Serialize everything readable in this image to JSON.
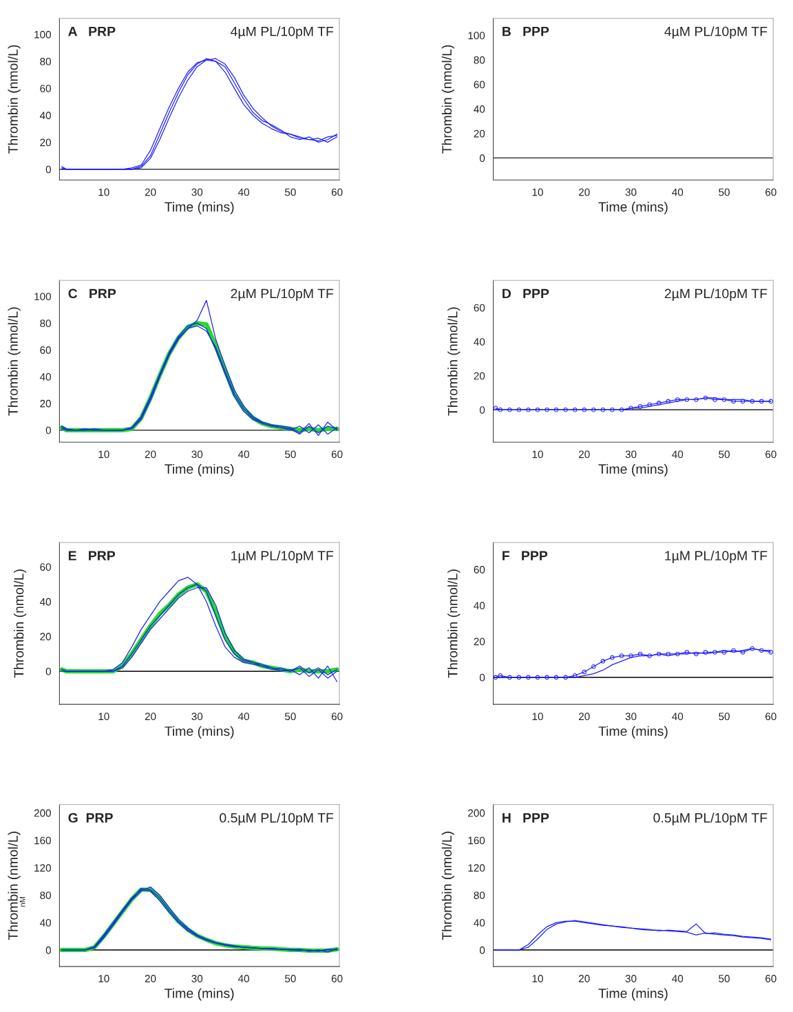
{
  "chart_data": [
    {
      "type": "line",
      "annotations": [
        "A   PRP",
        "4µM PL/10pM TF"
      ],
      "xlabel": "Time (mins)",
      "ylabel": "Thrombin (nmol/L)",
      "xlim": [
        0.5,
        60.5
      ],
      "xticks": [
        10,
        20,
        30,
        40,
        50,
        60
      ],
      "ylim": [
        -8,
        112
      ],
      "yticks": [
        0,
        20,
        40,
        60,
        80,
        100
      ],
      "ref_lines": [
        {
          "axis": "y",
          "value": 0,
          "color": "#555555"
        }
      ],
      "x": [
        1,
        2,
        4,
        6,
        8,
        10,
        12,
        14,
        16,
        18,
        20,
        22,
        24,
        26,
        28,
        30,
        32,
        34,
        36,
        38,
        40,
        42,
        44,
        46,
        48,
        50,
        52,
        54,
        56,
        58,
        60
      ],
      "series": [
        {
          "color": "#1f1fff",
          "values": [
            2,
            0,
            0,
            0,
            0,
            0,
            0,
            0,
            1,
            3,
            14,
            30,
            46,
            60,
            72,
            79,
            81,
            80,
            72,
            60,
            48,
            40,
            34,
            30,
            27,
            26,
            24,
            22,
            23,
            20,
            24
          ]
        },
        {
          "color": "#1f1fff",
          "values": [
            1,
            0,
            0,
            0,
            0,
            0,
            0,
            0,
            0,
            1,
            8,
            22,
            38,
            53,
            66,
            76,
            81,
            82,
            78,
            68,
            55,
            45,
            38,
            32,
            28,
            26,
            23,
            22,
            21,
            24,
            25
          ]
        },
        {
          "color": "#1f1fff",
          "values": [
            0,
            0,
            0,
            0,
            0,
            0,
            0,
            0,
            0,
            2,
            10,
            26,
            42,
            57,
            70,
            78,
            82,
            80,
            76,
            64,
            52,
            42,
            36,
            33,
            29,
            24,
            22,
            24,
            20,
            22,
            26
          ]
        }
      ]
    },
    {
      "type": "line",
      "annotations": [
        "B   PPP",
        "4µM PL/10pM TF"
      ],
      "xlabel": "Time (mins)",
      "ylabel": "Thrombin (nmol/L)",
      "xlim": [
        0.5,
        60.5
      ],
      "xticks": [
        10,
        20,
        30,
        40,
        50,
        60
      ],
      "ylim": [
        -18,
        114
      ],
      "yticks": [
        0,
        20,
        40,
        60,
        80,
        100
      ],
      "ref_lines": [
        {
          "axis": "y",
          "value": 0,
          "color": "#555555"
        }
      ]
    },
    {
      "type": "line",
      "annotations": [
        "C   PRP",
        "2µM PL/10pM TF"
      ],
      "xlabel": "Time (mins)",
      "ylabel": "Thrombin (nmol/L)",
      "xlim": [
        0.5,
        60.5
      ],
      "xticks": [
        10,
        20,
        30,
        40,
        50,
        60
      ],
      "ylim": [
        -9,
        112
      ],
      "yticks": [
        0,
        20,
        40,
        60,
        80,
        100
      ],
      "ref_lines": [
        {
          "axis": "y",
          "value": 0,
          "color": "#555555"
        }
      ],
      "x": [
        1,
        2,
        4,
        6,
        8,
        10,
        12,
        14,
        16,
        18,
        20,
        22,
        24,
        26,
        28,
        30,
        32,
        34,
        36,
        38,
        40,
        42,
        44,
        46,
        48,
        50,
        52,
        54,
        56,
        58,
        60
      ],
      "series": [
        {
          "color": "#1f1fff",
          "values": [
            3,
            1,
            0,
            0,
            1,
            0,
            0,
            0,
            2,
            10,
            25,
            42,
            58,
            70,
            78,
            80,
            76,
            60,
            42,
            25,
            14,
            8,
            5,
            3,
            2,
            0,
            3,
            -2,
            4,
            -3,
            2
          ]
        },
        {
          "color": "#1f1fff",
          "values": [
            2,
            0,
            0,
            1,
            0,
            0,
            0,
            0,
            1,
            8,
            22,
            40,
            56,
            68,
            76,
            82,
            97,
            68,
            48,
            30,
            18,
            10,
            6,
            4,
            3,
            2,
            -2,
            5,
            -4,
            6,
            0
          ]
        },
        {
          "color": "#1f1fff",
          "values": [
            1,
            0,
            0,
            0,
            0,
            0,
            0,
            0,
            1,
            9,
            24,
            41,
            57,
            69,
            76,
            78,
            74,
            62,
            44,
            27,
            16,
            9,
            5,
            3,
            2,
            1,
            -3,
            3,
            -2,
            3,
            1
          ]
        },
        {
          "color": "#22dd22",
          "values": [
            2,
            0,
            0,
            0,
            0,
            0,
            0,
            0,
            1,
            9,
            24,
            41,
            57,
            69,
            77,
            80,
            79,
            63,
            45,
            27,
            16,
            9,
            5,
            3,
            2,
            1,
            0,
            1,
            0,
            1,
            1
          ]
        }
      ]
    },
    {
      "type": "line",
      "annotations": [
        "D   PPP",
        "2µM PL/10pM TF"
      ],
      "xlabel": "Time (mins)",
      "ylabel": "Thrombin (nmol/L)",
      "xlim": [
        0.5,
        60.5
      ],
      "xticks": [
        10,
        20,
        30,
        40,
        50,
        60
      ],
      "ylim": [
        -19,
        76
      ],
      "yticks": [
        0,
        20,
        40,
        60
      ],
      "ref_lines": [
        {
          "axis": "y",
          "value": 0,
          "color": "#222222"
        }
      ],
      "x": [
        1,
        2,
        4,
        6,
        8,
        10,
        12,
        14,
        16,
        18,
        20,
        22,
        24,
        26,
        28,
        30,
        32,
        34,
        36,
        38,
        40,
        42,
        44,
        46,
        48,
        50,
        52,
        54,
        56,
        58,
        60
      ],
      "series": [
        {
          "color": "#1f1fff",
          "marker": "circle",
          "values": [
            1,
            0,
            0,
            0,
            0,
            0,
            0,
            0,
            0,
            0,
            0,
            0,
            0,
            0,
            0,
            1,
            2,
            3,
            4,
            5,
            6,
            6,
            6,
            7,
            6,
            6,
            5,
            5,
            5,
            5,
            5
          ]
        },
        {
          "color": "#1f1fff",
          "values": [
            0,
            0,
            0,
            0,
            0,
            0,
            0,
            0,
            0,
            0,
            0,
            0,
            0,
            0,
            0,
            1,
            1,
            2,
            3,
            4,
            5,
            6,
            6,
            7,
            7,
            6,
            6,
            6,
            5,
            5,
            5
          ]
        }
      ]
    },
    {
      "type": "line",
      "annotations": [
        "E   PRP",
        "1µM PL/10pM TF"
      ],
      "xlabel": "Time (mins)",
      "ylabel": "Thrombin (nmol/L)",
      "xlim": [
        0.5,
        60.5
      ],
      "xticks": [
        10,
        20,
        30,
        40,
        50,
        60
      ],
      "ylim": [
        -19,
        74
      ],
      "yticks": [
        0,
        20,
        40,
        60
      ],
      "ref_lines": [
        {
          "axis": "y",
          "value": 0,
          "color": "#222222"
        }
      ],
      "x": [
        1,
        2,
        4,
        6,
        8,
        10,
        12,
        14,
        16,
        18,
        20,
        22,
        24,
        26,
        28,
        30,
        32,
        34,
        36,
        38,
        40,
        42,
        44,
        46,
        48,
        50,
        52,
        54,
        56,
        58,
        60
      ],
      "series": [
        {
          "color": "#1f1fff",
          "values": [
            1,
            0,
            0,
            0,
            0,
            0,
            1,
            5,
            14,
            24,
            32,
            40,
            46,
            52,
            54,
            50,
            40,
            26,
            14,
            8,
            5,
            4,
            3,
            1,
            2,
            0,
            2,
            -3,
            1,
            -4,
            0
          ]
        },
        {
          "color": "#1f1fff",
          "values": [
            1,
            0,
            0,
            0,
            0,
            0,
            0,
            3,
            10,
            18,
            26,
            32,
            38,
            44,
            48,
            50,
            46,
            32,
            18,
            10,
            6,
            5,
            3,
            2,
            0,
            1,
            -2,
            2,
            -4,
            3,
            -6
          ]
        },
        {
          "color": "#1f1fff",
          "values": [
            0,
            0,
            0,
            0,
            0,
            0,
            0,
            2,
            8,
            16,
            24,
            30,
            36,
            42,
            46,
            48,
            48,
            38,
            22,
            12,
            7,
            5,
            4,
            2,
            1,
            0,
            3,
            -1,
            2,
            -2,
            1
          ]
        },
        {
          "color": "#22dd22",
          "values": [
            1,
            0,
            0,
            0,
            0,
            0,
            0,
            3,
            10,
            18,
            26,
            33,
            38,
            44,
            48,
            50,
            46,
            34,
            20,
            11,
            6,
            5,
            3,
            2,
            1,
            0,
            1,
            0,
            0,
            0,
            1
          ]
        }
      ]
    },
    {
      "type": "line",
      "annotations": [
        "F   PPP",
        "1µM PL/10pM TF"
      ],
      "xlabel": "Time (mins)",
      "ylabel": "Thrombin (nmol/L)",
      "xlim": [
        0.5,
        60.5
      ],
      "xticks": [
        10,
        20,
        30,
        40,
        50,
        60
      ],
      "ylim": [
        -15,
        75
      ],
      "yticks": [
        0,
        20,
        40,
        60
      ],
      "ref_lines": [
        {
          "axis": "y",
          "value": 0,
          "color": "#222222"
        }
      ],
      "x": [
        1,
        2,
        4,
        6,
        8,
        10,
        12,
        14,
        16,
        18,
        20,
        22,
        24,
        26,
        28,
        30,
        32,
        34,
        36,
        38,
        40,
        42,
        44,
        46,
        48,
        50,
        52,
        54,
        56,
        58,
        60
      ],
      "series": [
        {
          "color": "#1f1fff",
          "marker": "circle",
          "values": [
            0,
            1,
            0,
            0,
            0,
            0,
            0,
            0,
            0,
            1,
            3,
            6,
            9,
            11,
            12,
            12,
            13,
            12,
            13,
            13,
            13,
            14,
            13,
            14,
            14,
            14,
            15,
            14,
            16,
            15,
            14
          ]
        },
        {
          "color": "#1f1fff",
          "values": [
            0,
            0,
            0,
            0,
            0,
            0,
            0,
            0,
            0,
            0,
            1,
            2,
            4,
            7,
            9,
            11,
            12,
            12,
            13,
            12,
            13,
            13,
            14,
            13,
            14,
            15,
            14,
            15,
            16,
            15,
            15
          ]
        }
      ]
    },
    {
      "type": "line",
      "annotations": [
        "G  PRP",
        "0.5µM PL/10pM TF",
        "nM"
      ],
      "xlabel": "Time (mins)",
      "ylabel": "Thrombin (nmol/L)",
      "xlim": [
        0.5,
        60.5
      ],
      "xticks": [
        10,
        20,
        30,
        40,
        50,
        60
      ],
      "ylim": [
        -24,
        212
      ],
      "yticks": [
        0,
        40,
        80,
        120,
        160,
        200
      ],
      "ref_lines": [
        {
          "axis": "y",
          "value": 0,
          "color": "#222222"
        }
      ],
      "x": [
        1,
        2,
        4,
        6,
        8,
        10,
        12,
        14,
        16,
        18,
        20,
        22,
        24,
        26,
        28,
        30,
        32,
        34,
        36,
        38,
        40,
        42,
        44,
        46,
        48,
        50,
        52,
        54,
        56,
        58,
        60
      ],
      "series": [
        {
          "color": "#1f1fff",
          "values": [
            0,
            0,
            0,
            0,
            5,
            22,
            40,
            58,
            76,
            88,
            86,
            72,
            55,
            40,
            28,
            20,
            14,
            10,
            7,
            5,
            4,
            3,
            2,
            2,
            1,
            0,
            1,
            -2,
            0,
            -3,
            2
          ]
        },
        {
          "color": "#1f1fff",
          "values": [
            0,
            0,
            0,
            0,
            3,
            18,
            36,
            55,
            73,
            86,
            92,
            80,
            62,
            45,
            32,
            22,
            16,
            11,
            8,
            6,
            4,
            3,
            2,
            1,
            1,
            0,
            -1,
            0,
            -2,
            1,
            0
          ]
        },
        {
          "color": "#1f1fff",
          "values": [
            0,
            0,
            0,
            0,
            4,
            20,
            38,
            56,
            74,
            90,
            88,
            76,
            58,
            42,
            30,
            21,
            15,
            10,
            7,
            5,
            4,
            3,
            2,
            2,
            1,
            1,
            0,
            -1,
            -1,
            0,
            1
          ]
        },
        {
          "color": "#22dd22",
          "values": [
            0,
            0,
            0,
            0,
            4,
            20,
            38,
            56,
            74,
            88,
            88,
            76,
            58,
            42,
            30,
            21,
            15,
            10,
            7,
            5,
            4,
            3,
            2,
            2,
            1,
            0,
            0,
            -1,
            -1,
            -1,
            1
          ]
        }
      ]
    },
    {
      "type": "line",
      "annotations": [
        "H   PPP",
        "0.5µM PL/10pM TF"
      ],
      "xlabel": "Time (mins)",
      "ylabel": "Thrombin (nmol/L)",
      "xlim": [
        0.5,
        60.5
      ],
      "xticks": [
        10,
        20,
        30,
        40,
        50,
        60
      ],
      "ylim": [
        -24,
        212
      ],
      "yticks": [
        0,
        40,
        80,
        120,
        160,
        200
      ],
      "ref_lines": [
        {
          "axis": "y",
          "value": 0,
          "color": "#222222"
        }
      ],
      "x": [
        1,
        2,
        4,
        6,
        8,
        10,
        12,
        14,
        16,
        18,
        20,
        22,
        24,
        26,
        28,
        30,
        32,
        34,
        36,
        38,
        40,
        42,
        44,
        46,
        48,
        50,
        52,
        54,
        56,
        58,
        60
      ],
      "series": [
        {
          "color": "#1f1fff",
          "values": [
            0,
            0,
            0,
            0,
            8,
            22,
            34,
            40,
            42,
            42,
            40,
            38,
            36,
            35,
            34,
            32,
            31,
            30,
            28,
            29,
            28,
            27,
            38,
            24,
            25,
            23,
            22,
            20,
            19,
            18,
            16
          ]
        },
        {
          "color": "#1f1fff",
          "values": [
            0,
            0,
            0,
            0,
            4,
            16,
            30,
            38,
            41,
            43,
            41,
            39,
            37,
            35,
            33,
            32,
            30,
            29,
            29,
            28,
            27,
            26,
            22,
            25,
            23,
            22,
            21,
            19,
            18,
            17,
            15
          ]
        }
      ]
    }
  ]
}
